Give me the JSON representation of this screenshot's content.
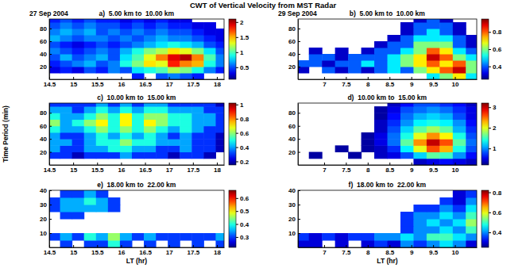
{
  "title": "CWT of Vertical Velocity from MST Radar",
  "chart_data": [
    {
      "type": "heatmap",
      "title": "a)  5.00 km to  10.00 km",
      "subtitle": "27 Sep 2004",
      "color": "jet",
      "xlim": [
        14.5,
        18.15
      ],
      "xticks": [
        14.5,
        15,
        15.5,
        16,
        16.5,
        17,
        17.5,
        18
      ],
      "ylim": [
        0,
        95
      ],
      "yticks": [
        20,
        40,
        60,
        80
      ],
      "colorbar_range": [
        0.1,
        2.1
      ],
      "colorbar_ticks": [
        0.5,
        1,
        1.5,
        2
      ],
      "x": [
        14.6,
        14.85,
        15.1,
        15.35,
        15.6,
        15.85,
        16.1,
        16.35,
        16.6,
        16.85,
        17.1,
        17.35,
        17.6,
        17.85,
        18.1
      ],
      "y": [
        5,
        15,
        25,
        35,
        45,
        55,
        65,
        75,
        85,
        95
      ],
      "cells": [
        [
          null,
          null,
          null,
          null,
          null,
          null,
          null,
          0.4,
          null,
          0.5,
          0.6,
          0.5,
          0.4,
          null,
          null
        ],
        [
          0.3,
          0.4,
          0.3,
          0.5,
          0.4,
          0.6,
          0.5,
          0.8,
          0.9,
          1.0,
          1.2,
          1.1,
          0.9,
          0.6,
          0.4
        ],
        [
          0.4,
          0.5,
          0.6,
          0.7,
          0.5,
          0.6,
          0.9,
          1.1,
          1.4,
          1.3,
          1.8,
          1.6,
          1.5,
          0.9,
          0.6
        ],
        [
          0.5,
          0.7,
          0.5,
          0.6,
          0.7,
          0.5,
          0.8,
          1.0,
          1.3,
          1.6,
          1.9,
          2.0,
          1.6,
          1.0,
          0.6
        ],
        [
          0.6,
          0.5,
          0.4,
          0.5,
          0.6,
          0.5,
          0.7,
          0.9,
          1.1,
          1.2,
          1.4,
          1.3,
          1.1,
          0.8,
          0.5
        ],
        [
          0.5,
          0.4,
          0.3,
          0.4,
          0.5,
          0.4,
          0.5,
          0.6,
          0.7,
          0.8,
          0.9,
          0.8,
          0.7,
          0.5,
          0.4
        ],
        [
          0.7,
          0.6,
          0.5,
          0.6,
          0.6,
          0.5,
          0.6,
          0.5,
          0.6,
          0.7,
          0.6,
          0.6,
          0.5,
          0.4,
          0.3
        ],
        [
          0.6,
          0.7,
          0.6,
          0.7,
          0.5,
          0.6,
          0.5,
          0.6,
          0.5,
          0.6,
          0.5,
          0.5,
          0.4,
          0.3,
          0.3
        ],
        [
          0.5,
          0.6,
          0.5,
          0.6,
          0.5,
          0.5,
          0.4,
          0.5,
          0.4,
          0.5,
          0.4,
          0.4,
          0.3,
          0.3,
          null
        ],
        [
          0.4,
          0.5,
          0.4,
          0.5,
          0.4,
          0.4,
          0.3,
          0.4,
          0.3,
          0.4,
          0.3,
          0.3,
          null,
          null,
          null
        ]
      ]
    },
    {
      "type": "heatmap",
      "title": "b)  5.00 km to  10.00 km",
      "subtitle": "29 Sep 2004",
      "color": "jet",
      "xlim": [
        6.4,
        10.5
      ],
      "xticks": [
        7,
        7.5,
        8,
        8.5,
        9,
        9.5,
        10
      ],
      "ylim": [
        0,
        95
      ],
      "yticks": [
        20,
        40,
        60,
        80
      ],
      "colorbar_range": [
        0.25,
        0.95
      ],
      "colorbar_ticks": [
        0.4,
        0.6,
        0.8
      ],
      "x": [
        6.5,
        6.8,
        7.1,
        7.4,
        7.7,
        8,
        8.3,
        8.6,
        8.9,
        9.2,
        9.5,
        9.8,
        10.1,
        10.4
      ],
      "y": [
        5,
        15,
        25,
        35,
        45,
        55,
        65,
        75,
        85,
        95
      ],
      "cells": [
        [
          null,
          null,
          null,
          null,
          null,
          null,
          null,
          null,
          null,
          null,
          0.5,
          0.6,
          0.7,
          0.5
        ],
        [
          0.3,
          null,
          0.4,
          0.3,
          0.4,
          0.3,
          0.4,
          0.5,
          0.4,
          0.6,
          0.7,
          0.8,
          0.9,
          0.6
        ],
        [
          0.4,
          0.4,
          0.3,
          0.4,
          0.4,
          0.5,
          0.4,
          0.5,
          0.6,
          0.7,
          0.8,
          0.7,
          0.8,
          0.6
        ],
        [
          null,
          0.4,
          0.4,
          0.3,
          0.4,
          0.4,
          0.4,
          0.5,
          0.6,
          0.7,
          0.9,
          0.8,
          0.6,
          0.5
        ],
        [
          null,
          0.3,
          null,
          0.3,
          null,
          0.3,
          0.4,
          0.4,
          0.5,
          0.6,
          0.8,
          0.7,
          0.5,
          0.4
        ],
        [
          null,
          null,
          null,
          null,
          null,
          null,
          0.3,
          0.4,
          0.4,
          0.6,
          0.6,
          0.6,
          0.4,
          0.3
        ],
        [
          null,
          null,
          null,
          null,
          null,
          null,
          null,
          0.3,
          0.4,
          0.5,
          0.5,
          0.5,
          0.4,
          0.3
        ],
        [
          null,
          null,
          null,
          null,
          null,
          null,
          null,
          null,
          0.3,
          0.4,
          0.5,
          0.4,
          0.3,
          null
        ],
        [
          null,
          null,
          null,
          null,
          null,
          null,
          null,
          null,
          0.3,
          0.4,
          0.4,
          0.4,
          0.3,
          null
        ],
        [
          null,
          null,
          null,
          null,
          null,
          null,
          null,
          null,
          null,
          0.3,
          0.4,
          0.3,
          null,
          null
        ]
      ]
    },
    {
      "type": "heatmap",
      "title": "c)  10.00 km to  15.00 km",
      "ylabel": "Time Period (min)",
      "color": "jet",
      "xlim": [
        14.5,
        18.15
      ],
      "xticks": [
        14.5,
        15,
        15.5,
        16,
        16.5,
        17,
        17.5,
        18
      ],
      "ylim": [
        0,
        95
      ],
      "yticks": [
        20,
        40,
        60,
        80
      ],
      "colorbar_range": [
        0.15,
        1.02
      ],
      "colorbar_ticks": [
        0.2,
        0.4,
        0.6,
        0.8,
        1
      ],
      "x": [
        14.6,
        14.85,
        15.1,
        15.35,
        15.6,
        15.85,
        16.1,
        16.35,
        16.6,
        16.85,
        17.1,
        17.35,
        17.6,
        17.85,
        18.1
      ],
      "y": [
        5,
        15,
        25,
        35,
        45,
        55,
        65,
        75,
        85,
        95
      ],
      "cells": [
        [
          null,
          null,
          null,
          null,
          null,
          null,
          null,
          null,
          null,
          null,
          null,
          null,
          null,
          null,
          null
        ],
        [
          0.3,
          0.3,
          0.2,
          0.3,
          0.3,
          0.3,
          0.4,
          0.3,
          0.3,
          0.3,
          0.2,
          0.3,
          0.3,
          0.2,
          null
        ],
        [
          0.4,
          0.3,
          0.3,
          0.4,
          0.4,
          0.5,
          0.5,
          0.4,
          0.4,
          0.3,
          0.3,
          0.4,
          0.3,
          0.3,
          0.2
        ],
        [
          0.4,
          0.4,
          0.3,
          0.4,
          0.5,
          0.5,
          0.6,
          0.5,
          0.5,
          0.4,
          0.4,
          0.4,
          0.3,
          0.3,
          0.2
        ],
        [
          0.4,
          0.3,
          0.3,
          0.4,
          0.5,
          0.4,
          0.5,
          0.4,
          0.5,
          0.4,
          0.3,
          0.4,
          0.3,
          0.3,
          0.2
        ],
        [
          0.5,
          0.4,
          0.4,
          0.5,
          0.6,
          0.5,
          0.6,
          0.5,
          0.6,
          0.5,
          0.4,
          0.5,
          0.4,
          0.3,
          0.3
        ],
        [
          0.6,
          0.4,
          0.5,
          0.6,
          0.7,
          0.5,
          0.7,
          0.5,
          0.7,
          0.6,
          0.5,
          0.5,
          0.4,
          0.4,
          0.3
        ],
        [
          0.5,
          0.4,
          0.4,
          0.5,
          0.6,
          0.5,
          0.7,
          0.5,
          0.6,
          0.6,
          0.5,
          0.5,
          0.4,
          0.4,
          0.3
        ],
        [
          0.4,
          0.4,
          0.3,
          0.4,
          0.5,
          0.4,
          0.5,
          0.4,
          0.5,
          0.5,
          0.4,
          0.4,
          0.4,
          0.3,
          0.3
        ],
        [
          0.3,
          0.3,
          0.3,
          0.3,
          0.4,
          0.3,
          0.4,
          0.3,
          0.4,
          0.4,
          0.3,
          0.3,
          0.3,
          0.3,
          0.2
        ]
      ]
    },
    {
      "type": "heatmap",
      "title": "d)  10.00 km to  15.00 km",
      "color": "jet",
      "xlim": [
        6.4,
        10.5
      ],
      "xticks": [
        7,
        7.5,
        8,
        8.5,
        9,
        9.5,
        10
      ],
      "ylim": [
        0,
        95
      ],
      "yticks": [
        20,
        40,
        60,
        80
      ],
      "colorbar_range": [
        0.2,
        3.2
      ],
      "colorbar_ticks": [
        1,
        2,
        3
      ],
      "x": [
        6.5,
        6.8,
        7.1,
        7.4,
        7.7,
        8,
        8.3,
        8.6,
        8.9,
        9.2,
        9.5,
        9.8,
        10.1,
        10.4
      ],
      "y": [
        5,
        15,
        25,
        35,
        45,
        55,
        65,
        75,
        85,
        95
      ],
      "cells": [
        [
          null,
          null,
          null,
          null,
          null,
          null,
          null,
          null,
          null,
          0.4,
          0.5,
          0.6,
          0.5,
          0.4
        ],
        [
          null,
          0.3,
          null,
          null,
          0.3,
          null,
          0.4,
          0.5,
          0.8,
          1.2,
          1.6,
          1.5,
          1.0,
          0.6
        ],
        [
          null,
          null,
          null,
          0.3,
          null,
          0.3,
          0.4,
          0.7,
          1.3,
          2.0,
          2.6,
          2.3,
          1.4,
          0.8
        ],
        [
          null,
          null,
          null,
          null,
          null,
          0.3,
          0.5,
          0.9,
          1.6,
          2.4,
          3.0,
          2.6,
          1.6,
          0.9
        ],
        [
          null,
          null,
          null,
          null,
          null,
          0.3,
          0.5,
          0.9,
          1.4,
          2.0,
          2.4,
          2.1,
          1.4,
          0.8
        ],
        [
          null,
          null,
          null,
          null,
          null,
          null,
          0.4,
          0.8,
          1.2,
          1.6,
          1.8,
          1.6,
          1.1,
          0.7
        ],
        [
          null,
          null,
          null,
          null,
          null,
          null,
          0.4,
          0.7,
          1.0,
          1.3,
          1.4,
          1.3,
          1.0,
          0.6
        ],
        [
          null,
          null,
          null,
          null,
          null,
          null,
          0.3,
          0.6,
          0.9,
          1.1,
          1.2,
          1.1,
          0.8,
          0.5
        ],
        [
          null,
          null,
          null,
          null,
          null,
          null,
          0.3,
          0.5,
          0.8,
          0.9,
          1.0,
          0.9,
          0.7,
          0.5
        ],
        [
          null,
          null,
          null,
          null,
          null,
          null,
          null,
          0.4,
          0.6,
          0.8,
          0.8,
          0.7,
          0.6,
          0.4
        ]
      ]
    },
    {
      "type": "heatmap",
      "title": "e)  18.00 km to  22.00 km",
      "xlabel": "LT (hr)",
      "color": "jet",
      "xlim": [
        14.5,
        18.15
      ],
      "xticks": [
        14.5,
        15,
        15.5,
        16,
        16.5,
        17,
        17.5,
        18
      ],
      "ylim": [
        0,
        40
      ],
      "yticks": [
        10,
        20,
        30,
        40
      ],
      "colorbar_range": [
        0.22,
        0.66
      ],
      "colorbar_ticks": [
        0.3,
        0.4,
        0.5,
        0.6
      ],
      "x": [
        14.6,
        14.85,
        15.1,
        15.35,
        15.6,
        15.85,
        16.1,
        16.35,
        16.6,
        16.85,
        17.1,
        17.35,
        17.6,
        17.85,
        18.1
      ],
      "y": [
        2.5,
        7.5,
        12.5,
        17.5,
        22.5,
        27.5,
        32.5,
        37.5
      ],
      "cells": [
        [
          null,
          0.3,
          null,
          0.3,
          0.3,
          0.4,
          0.3,
          null,
          0.3,
          null,
          0.3,
          null,
          0.3,
          null,
          0.3
        ],
        [
          0.3,
          0.35,
          0.3,
          0.4,
          0.35,
          0.45,
          0.35,
          0.3,
          0.35,
          0.3,
          0.3,
          0.3,
          0.3,
          0.3,
          0.35
        ],
        [
          null,
          null,
          null,
          null,
          null,
          null,
          null,
          null,
          null,
          null,
          null,
          null,
          null,
          null,
          null
        ],
        [
          null,
          null,
          null,
          null,
          null,
          null,
          null,
          null,
          null,
          null,
          null,
          null,
          null,
          null,
          null
        ],
        [
          null,
          0.3,
          0.3,
          null,
          null,
          null,
          null,
          null,
          null,
          null,
          null,
          null,
          null,
          null,
          null
        ],
        [
          0.3,
          0.35,
          0.35,
          0.35,
          0.35,
          0.3,
          null,
          null,
          null,
          null,
          null,
          null,
          null,
          null,
          null
        ],
        [
          0.3,
          0.35,
          0.35,
          0.4,
          0.35,
          0.3,
          null,
          null,
          null,
          null,
          null,
          null,
          null,
          null,
          null
        ],
        [
          null,
          0.3,
          0.3,
          0.35,
          0.3,
          null,
          null,
          null,
          null,
          null,
          null,
          null,
          null,
          null,
          null
        ]
      ]
    },
    {
      "type": "heatmap",
      "title": "f)  18.00 km to  22.00 km",
      "xlabel": "LT (hr)",
      "color": "jet",
      "xlim": [
        6.4,
        10.5
      ],
      "xticks": [
        7,
        7.5,
        8,
        8.5,
        9,
        9.5,
        10
      ],
      "ylim": [
        0,
        40
      ],
      "yticks": [
        10,
        20,
        30,
        40
      ],
      "colorbar_range": [
        0.25,
        0.82
      ],
      "colorbar_ticks": [
        0.4,
        0.6,
        0.8
      ],
      "x": [
        6.5,
        6.8,
        7.1,
        7.4,
        7.7,
        8,
        8.3,
        8.6,
        8.9,
        9.2,
        9.5,
        9.8,
        10.1,
        10.4
      ],
      "y": [
        2.5,
        7.5,
        12.5,
        17.5,
        22.5,
        27.5,
        32.5,
        37.5
      ],
      "cells": [
        [
          0.3,
          0.3,
          null,
          0.3,
          null,
          0.3,
          0.35,
          0.3,
          0.4,
          0.35,
          0.4,
          0.45,
          0.4,
          0.3
        ],
        [
          0.35,
          0.3,
          0.35,
          0.3,
          0.35,
          0.35,
          0.4,
          0.4,
          0.45,
          0.4,
          0.5,
          0.5,
          0.45,
          0.4
        ],
        [
          null,
          null,
          null,
          null,
          null,
          null,
          null,
          null,
          0.35,
          0.4,
          0.4,
          0.45,
          0.4,
          0.5
        ],
        [
          null,
          null,
          null,
          null,
          null,
          null,
          null,
          null,
          0.35,
          0.4,
          0.45,
          0.4,
          0.45,
          0.55
        ],
        [
          null,
          null,
          null,
          null,
          null,
          null,
          null,
          null,
          0.35,
          0.4,
          0.4,
          0.45,
          0.4,
          0.5
        ],
        [
          null,
          null,
          null,
          null,
          null,
          null,
          null,
          null,
          null,
          0.35,
          0.35,
          0.4,
          0.35,
          0.45
        ],
        [
          null,
          null,
          null,
          null,
          null,
          null,
          null,
          null,
          null,
          null,
          null,
          0.35,
          0.3,
          0.4
        ],
        [
          null,
          null,
          null,
          null,
          null,
          null,
          null,
          null,
          null,
          null,
          null,
          null,
          0.3,
          0.35
        ]
      ]
    }
  ]
}
